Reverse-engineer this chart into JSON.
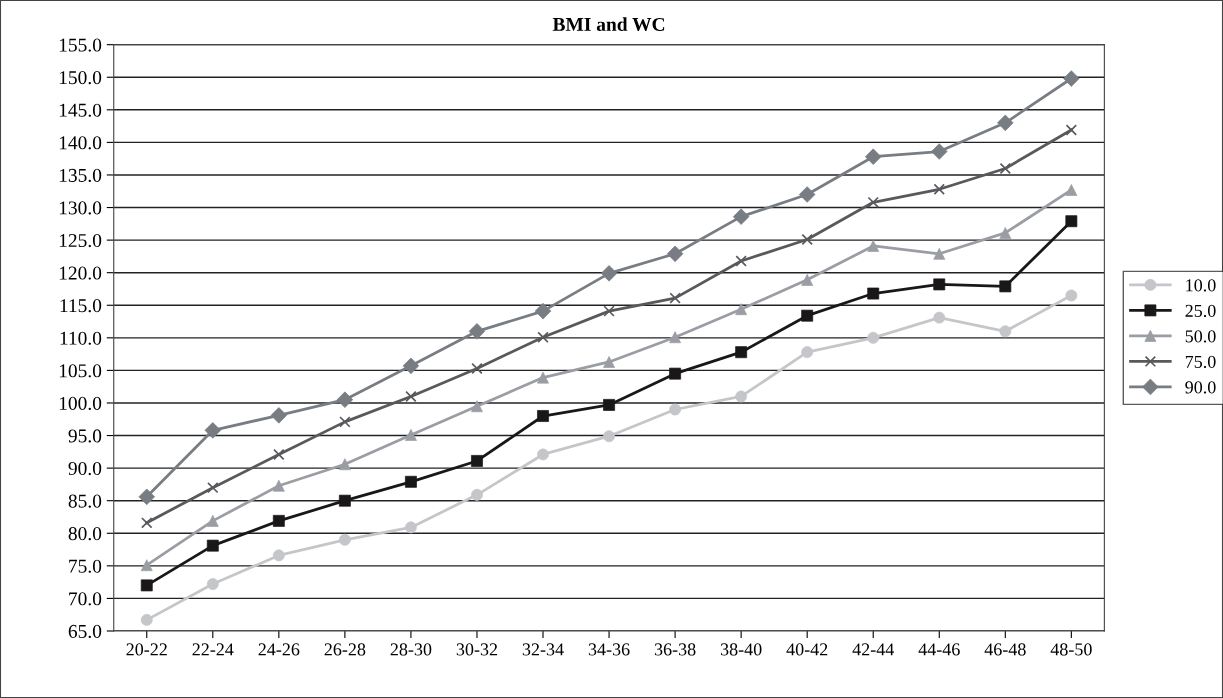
{
  "chart_data": {
    "type": "line",
    "title": "BMI and WC",
    "categories": [
      "20-22",
      "22-24",
      "24-26",
      "26-28",
      "28-30",
      "30-32",
      "32-34",
      "34-36",
      "36-38",
      "38-40",
      "40-42",
      "42-44",
      "44-46",
      "46-48",
      "48-50"
    ],
    "series": [
      {
        "name": "10.0",
        "color": "#c4c6c9",
        "marker": "circle",
        "values": [
          66.7,
          72.2,
          76.6,
          79.0,
          80.9,
          85.9,
          92.1,
          94.9,
          99.0,
          101.0,
          107.8,
          110.0,
          113.1,
          111.0,
          116.5
        ]
      },
      {
        "name": "25.0",
        "color": "#1a1718",
        "marker": "square",
        "values": [
          72.0,
          78.1,
          81.9,
          85.0,
          87.9,
          91.1,
          98.0,
          99.7,
          104.5,
          107.8,
          113.4,
          116.8,
          118.2,
          117.9,
          127.9
        ]
      },
      {
        "name": "50.0",
        "color": "#9a9ea4",
        "marker": "triangle",
        "values": [
          75.1,
          81.9,
          87.3,
          90.6,
          95.1,
          99.5,
          103.9,
          106.3,
          110.1,
          114.4,
          118.9,
          124.1,
          122.9,
          126.1,
          132.7
        ]
      },
      {
        "name": "75.0",
        "color": "#58595c",
        "marker": "cross",
        "values": [
          81.6,
          87.0,
          92.1,
          97.1,
          101.0,
          105.3,
          110.1,
          114.1,
          116.1,
          121.8,
          125.1,
          130.8,
          132.8,
          136.0,
          141.9
        ]
      },
      {
        "name": "90.0",
        "color": "#787d84",
        "marker": "diamond",
        "values": [
          85.6,
          95.8,
          98.1,
          100.5,
          105.7,
          111.0,
          114.1,
          119.9,
          122.9,
          128.6,
          132.0,
          137.8,
          138.6,
          143.0,
          149.8
        ]
      }
    ],
    "ylim": [
      65,
      155
    ],
    "yticks": [
      {
        "value": 65,
        "label": "65.0"
      },
      {
        "value": 70,
        "label": "70.0"
      },
      {
        "value": 75,
        "label": "75.0"
      },
      {
        "value": 80,
        "label": "80.0"
      },
      {
        "value": 85,
        "label": "85.0"
      },
      {
        "value": 90,
        "label": "90.0"
      },
      {
        "value": 95,
        "label": "95.0"
      },
      {
        "value": 100,
        "label": "100.0"
      },
      {
        "value": 105,
        "label": "105.0"
      },
      {
        "value": 110,
        "label": "110.0"
      },
      {
        "value": 115,
        "label": "115.0"
      },
      {
        "value": 120,
        "label": "120.0"
      },
      {
        "value": 125,
        "label": "125.0"
      },
      {
        "value": 130,
        "label": "130.0"
      },
      {
        "value": 135,
        "label": "135.0"
      },
      {
        "value": 140,
        "label": "140.0"
      },
      {
        "value": 145,
        "label": "145.0"
      },
      {
        "value": 150,
        "label": "150.0"
      },
      {
        "value": 155,
        "label": "155.0"
      }
    ],
    "grid": "y",
    "legend": "right",
    "line_style": "solid"
  }
}
